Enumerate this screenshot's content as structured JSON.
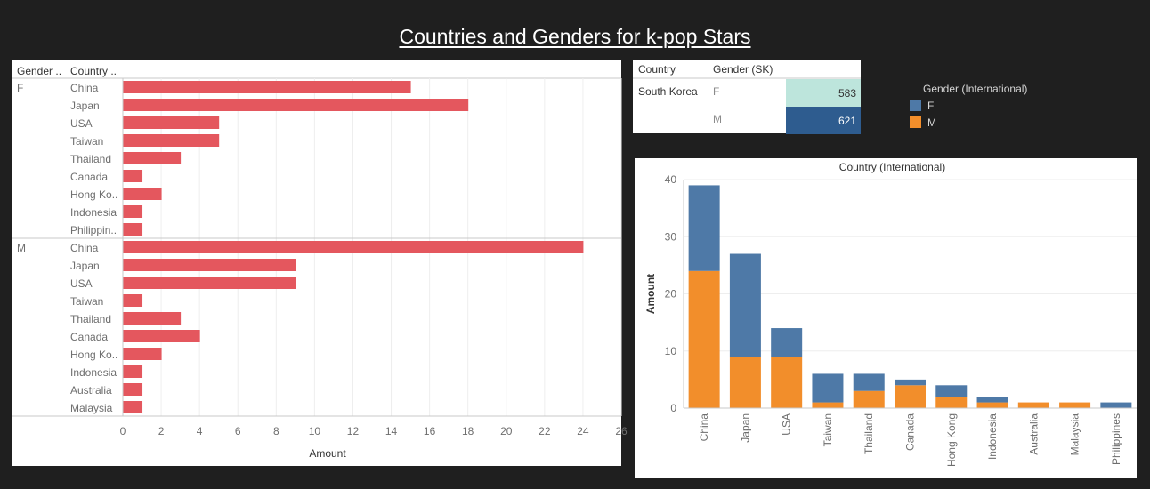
{
  "dashboard": {
    "title": "Countries and Genders for k-pop Stars"
  },
  "chart_data": [
    {
      "type": "bar",
      "orientation": "horizontal",
      "column_headers": [
        "Gender ..",
        "Country .."
      ],
      "groups": [
        {
          "gender": "F",
          "categories": [
            "China",
            "Japan",
            "USA",
            "Taiwan",
            "Thailand",
            "Canada",
            "Hong Ko..",
            "Indonesia",
            "Philippin.."
          ],
          "values": [
            15,
            18,
            5,
            5,
            3,
            1,
            2,
            1,
            1
          ]
        },
        {
          "gender": "M",
          "categories": [
            "China",
            "Japan",
            "USA",
            "Taiwan",
            "Thailand",
            "Canada",
            "Hong Ko..",
            "Indonesia",
            "Australia",
            "Malaysia"
          ],
          "values": [
            24,
            9,
            9,
            1,
            3,
            4,
            2,
            1,
            1,
            1
          ]
        }
      ],
      "xlabel": "Amount",
      "xlim": [
        0,
        26
      ],
      "xticks": [
        0,
        2,
        4,
        6,
        8,
        10,
        12,
        14,
        16,
        18,
        20,
        22,
        24,
        26
      ],
      "color": "#e4575e"
    },
    {
      "type": "table",
      "headers": [
        "Country",
        "Gender (SK)"
      ],
      "rows": [
        {
          "country": "South Korea",
          "gender": "F",
          "value": 583,
          "color": "#bde5dc"
        },
        {
          "country": "",
          "gender": "M",
          "value": 621,
          "color": "#2e5c8f"
        }
      ]
    },
    {
      "type": "bar",
      "stacked": true,
      "title": "Country (International)",
      "categories": [
        "China",
        "Japan",
        "USA",
        "Taiwan",
        "Thailand",
        "Canada",
        "Hong Kong",
        "Indonesia",
        "Australia",
        "Malaysia",
        "Philippines"
      ],
      "series": [
        {
          "name": "M",
          "color": "#f28e2b",
          "values": [
            24,
            9,
            9,
            1,
            3,
            4,
            2,
            1,
            1,
            1,
            0
          ]
        },
        {
          "name": "F",
          "color": "#4e79a7",
          "values": [
            15,
            18,
            5,
            5,
            3,
            1,
            2,
            1,
            0,
            0,
            1
          ]
        }
      ],
      "ylabel": "Amount",
      "ylim": [
        0,
        40
      ],
      "yticks": [
        0,
        10,
        20,
        30,
        40
      ],
      "legend": {
        "title": "Gender (International)",
        "items": [
          "F",
          "M"
        ],
        "placement": "right"
      }
    }
  ]
}
